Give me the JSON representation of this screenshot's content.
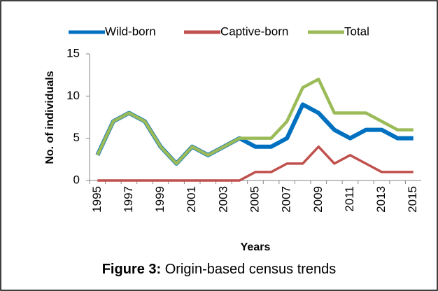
{
  "chart_data": {
    "type": "line",
    "categories": [
      "1995",
      null,
      "1997",
      null,
      "1999",
      null,
      "2001",
      null,
      "2003",
      null,
      "2005",
      null,
      "2007",
      null,
      "2009",
      null,
      "2011",
      null,
      "2013",
      null,
      "2015"
    ],
    "series": [
      {
        "name": "Wild-born",
        "color": "#0070c0",
        "values": [
          3,
          7,
          8,
          7,
          4,
          2,
          4,
          3,
          4,
          5,
          4,
          4,
          5,
          9,
          8,
          6,
          5,
          6,
          6,
          5,
          5
        ]
      },
      {
        "name": "Captive-born",
        "color": "#c0504d",
        "values": [
          0,
          0,
          0,
          0,
          0,
          0,
          0,
          0,
          0,
          0,
          1,
          1,
          2,
          2,
          4,
          2,
          3,
          2,
          1,
          1,
          1
        ]
      },
      {
        "name": "Total",
        "color": "#9bbb59",
        "values": [
          3,
          7,
          8,
          7,
          4,
          2,
          4,
          3,
          4,
          5,
          5,
          5,
          7,
          11,
          12,
          8,
          8,
          8,
          7,
          6,
          6
        ]
      }
    ],
    "ylim": [
      0,
      15
    ],
    "yticks": [
      0,
      5,
      10,
      15
    ],
    "y_label": "No. of individuals",
    "x_label": "Years",
    "caption_label": "Figure 3:",
    "caption_text": "Origin-based census trends",
    "legend": "top"
  }
}
